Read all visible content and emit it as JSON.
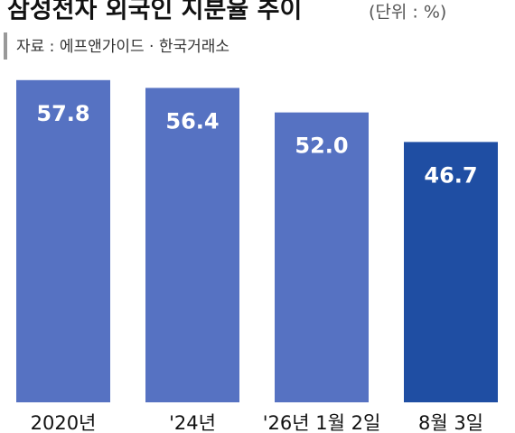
{
  "chart_data": {
    "type": "bar",
    "title": "삼성전자 외국인 지분율 추이",
    "unit_note": "(단위 : %)",
    "source": "자료 : 에프앤가이드 · 한국거래소",
    "categories": [
      "2020년",
      "'24년",
      "'26년 1월 2일",
      "8월 3일"
    ],
    "values": [
      57.8,
      56.4,
      52.0,
      46.7
    ],
    "value_labels": [
      "57.8",
      "56.4",
      "52.0",
      "46.7"
    ],
    "colors": [
      "#5672c2",
      "#5672c2",
      "#5672c2",
      "#1f4ea3"
    ]
  }
}
